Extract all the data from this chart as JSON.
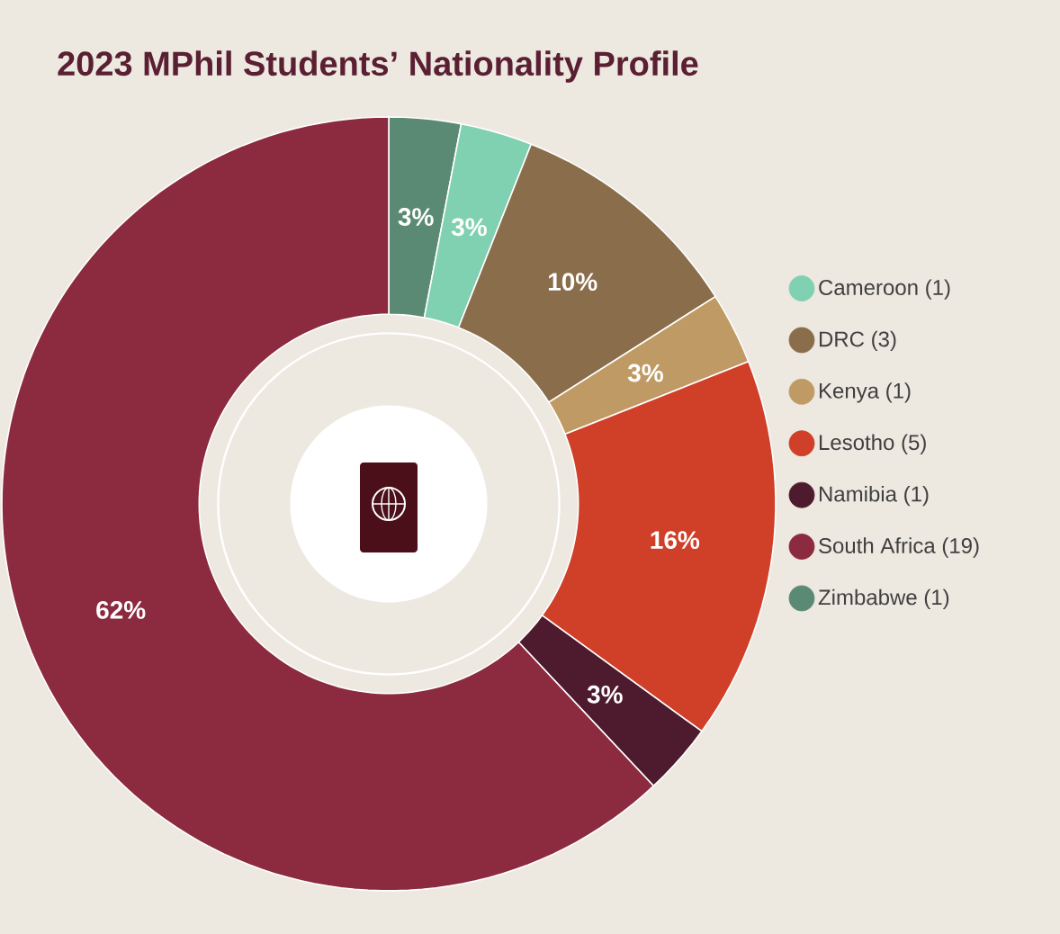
{
  "chart_data": {
    "type": "donut",
    "title": "2023 MPhil Students’ Nationality Profile",
    "categories": [
      "Cameroon (1)",
      "DRC (3)",
      "Kenya (1)",
      "Lesotho (5)",
      "Namibia (1)",
      "South Africa (19)",
      "Zimbabwe (1)"
    ],
    "values": [
      3,
      10,
      3,
      16,
      3,
      62,
      3
    ],
    "colors": [
      "#80d0b2",
      "#8a6d4b",
      "#c09a64",
      "#d03f27",
      "#4e1a2d",
      "#8c2a3f",
      "#5b8a74"
    ],
    "value_labels": [
      "3%",
      "10%",
      "3%",
      "16%",
      "3%",
      "62%",
      "3%"
    ],
    "legend": "right"
  }
}
